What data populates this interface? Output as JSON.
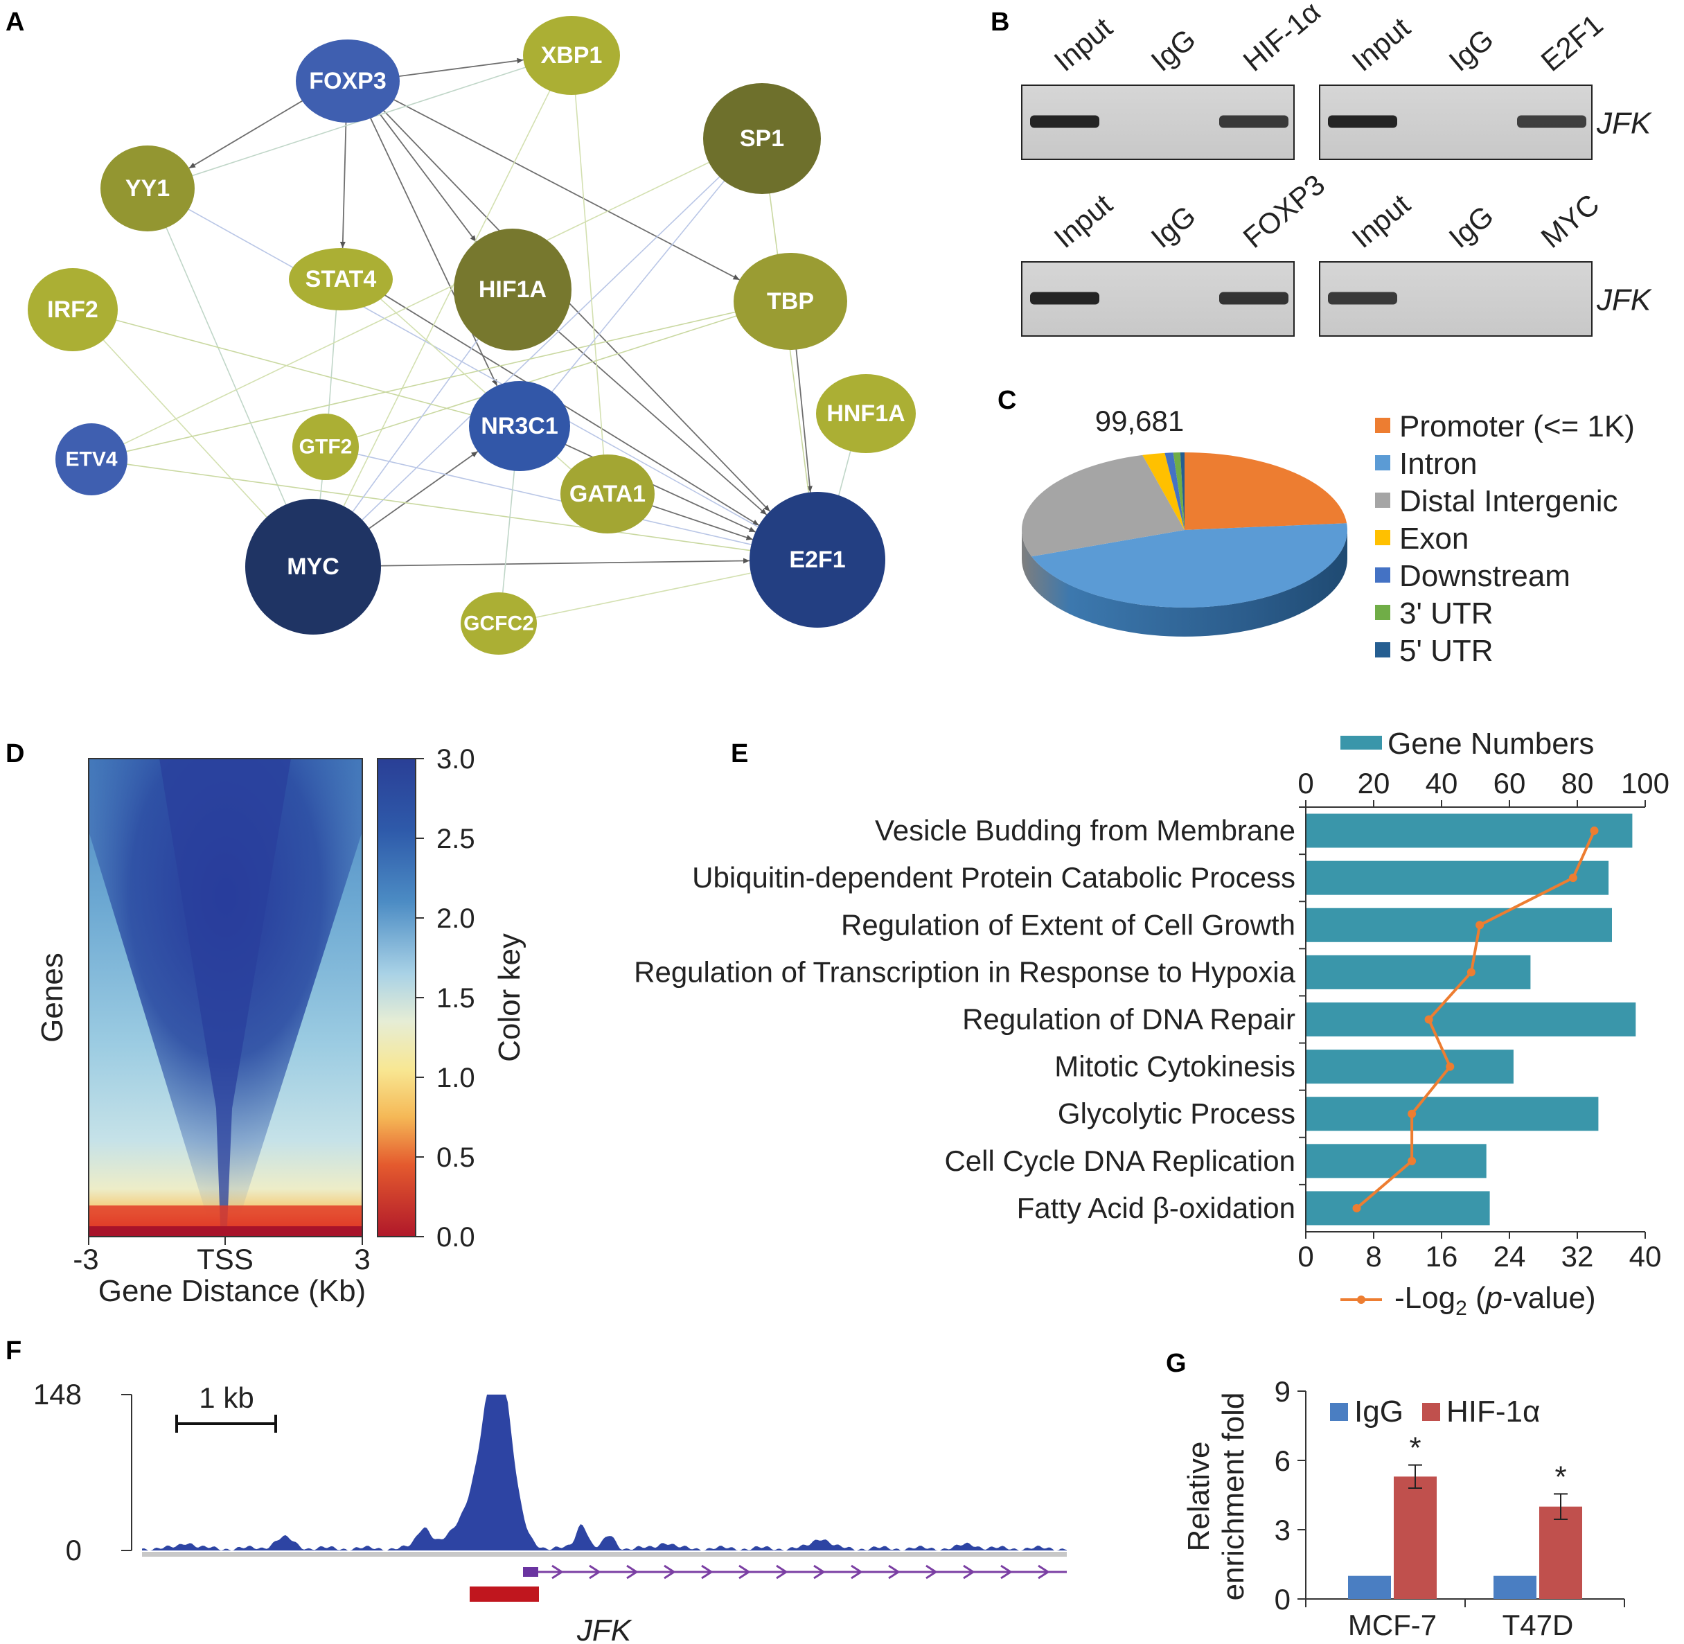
{
  "panels": {
    "A": "A",
    "B": "B",
    "C": "C",
    "D": "D",
    "E": "E",
    "F": "F",
    "G": "G"
  },
  "network": {
    "nodes": [
      {
        "id": "FOXP3",
        "label": "FOXP3",
        "color": "#3F5FB0"
      },
      {
        "id": "XBP1",
        "label": "XBP1",
        "color": "#ABAF34"
      },
      {
        "id": "SP1",
        "label": "SP1",
        "color": "#6E702C"
      },
      {
        "id": "YY1",
        "label": "YY1",
        "color": "#939631"
      },
      {
        "id": "STAT4",
        "label": "STAT4",
        "color": "#ABAF34"
      },
      {
        "id": "HIF1A",
        "label": "HIF1A",
        "color": "#77782E"
      },
      {
        "id": "TBP",
        "label": "TBP",
        "color": "#9A9C33"
      },
      {
        "id": "IRF2",
        "label": "IRF2",
        "color": "#ABAF34"
      },
      {
        "id": "HNF1A",
        "label": "HNF1A",
        "color": "#ABAF34"
      },
      {
        "id": "ETV4",
        "label": "ETV4",
        "color": "#3F5FB0"
      },
      {
        "id": "GTF2",
        "label": "GTF2",
        "color": "#ABAF34"
      },
      {
        "id": "NR3C1",
        "label": "NR3C1",
        "color": "#3257A8"
      },
      {
        "id": "GATA1",
        "label": "GATA1",
        "color": "#A3A633"
      },
      {
        "id": "MYC",
        "label": "MYC",
        "color": "#1F3464"
      },
      {
        "id": "E2F1",
        "label": "E2F1",
        "color": "#233F82"
      },
      {
        "id": "GCFC2",
        "label": "GCFC2",
        "color": "#ABAF34"
      }
    ]
  },
  "chip_gel": {
    "gels": [
      {
        "lanes": [
          "Input",
          "IgG",
          "HIF-1α"
        ],
        "target": "JFK",
        "bands": [
          1,
          0,
          0.8
        ]
      },
      {
        "lanes": [
          "Input",
          "IgG",
          "E2F1"
        ],
        "target": "JFK",
        "bands": [
          1,
          0,
          0.75
        ]
      },
      {
        "lanes": [
          "Input",
          "IgG",
          "FOXP3"
        ],
        "target": "JFK",
        "bands": [
          1,
          0,
          0.85
        ]
      },
      {
        "lanes": [
          "Input",
          "IgG",
          "MYC"
        ],
        "target": "JFK",
        "bands": [
          0.8,
          0,
          0
        ]
      }
    ]
  },
  "pie": {
    "total_label": "99,681",
    "legend": [
      {
        "label": "Promoter (<= 1K)",
        "color": "#ED7D31"
      },
      {
        "label": "Intron",
        "color": "#5B9BD5"
      },
      {
        "label": "Distal Intergenic",
        "color": "#A5A5A5"
      },
      {
        "label": "Exon",
        "color": "#FFC000"
      },
      {
        "label": "Downstream",
        "color": "#4472C4"
      },
      {
        "label": "3' UTR",
        "color": "#70AD47"
      },
      {
        "label": "5' UTR",
        "color": "#255E91"
      }
    ]
  },
  "heatmap": {
    "ylabel": "Genes",
    "xticks": [
      "-3",
      "TSS",
      "3"
    ],
    "xlabel": "Gene Distance (Kb)",
    "colorkey_label": "Color key",
    "colorkey_ticks": [
      "3.0",
      "2.5",
      "2.0",
      "1.5",
      "1.0",
      "0.5",
      "0.0"
    ]
  },
  "chart_data": [
    {
      "type": "bar",
      "title": "",
      "categories": [
        "Vesicle Budding from Membrane",
        "Ubiquitin-dependent Protein Catabolic Process",
        "Regulation of Extent of Cell Growth",
        "Regulation of Transcription in Response to Hypoxia",
        "Regulation of DNA Repair",
        "Mitotic Cytokinesis",
        "Glycolytic Process",
        "Cell Cycle DNA Replication",
        "Fatty Acid β-oxidation"
      ],
      "series": [
        {
          "name": "Gene Numbers",
          "values": [
            96,
            89,
            90,
            66,
            97,
            61,
            86,
            53,
            54
          ],
          "color": "#3A96AA"
        },
        {
          "name": "-Log2 (p-value)",
          "values": [
            34,
            31.5,
            20.5,
            19.5,
            14.5,
            17,
            12.5,
            12.5,
            6
          ],
          "color": "#ED7D31"
        }
      ],
      "top_axis": {
        "ticks": [
          "0",
          "20",
          "40",
          "60",
          "80",
          "100"
        ],
        "range": [
          0,
          100
        ]
      },
      "bottom_axis": {
        "ticks": [
          "0",
          "8",
          "16",
          "24",
          "32",
          "40"
        ],
        "range": [
          0,
          40
        ]
      },
      "legend_top": "Gene Numbers",
      "legend_bottom_prefix": "-Log",
      "legend_bottom_sub": "2",
      "legend_bottom_open": " (",
      "legend_bottom_p": "p",
      "legend_bottom_suffix": "-value)"
    },
    {
      "type": "bar",
      "title": "",
      "categories": [
        "MCF-7",
        "T47D"
      ],
      "series": [
        {
          "name": "IgG",
          "values": [
            1,
            1
          ],
          "errors": [
            0,
            0
          ],
          "color": "#4A7EC2"
        },
        {
          "name": "HIF-1α",
          "values": [
            5.3,
            4.0
          ],
          "errors": [
            0.5,
            0.55
          ],
          "color": "#C0504D"
        }
      ],
      "ylabel_line1": "Relative",
      "ylabel_line2": "enrichment fold",
      "yticks": [
        "0",
        "3",
        "6",
        "9"
      ],
      "ylim": [
        0,
        9
      ],
      "significance": [
        "*",
        "*"
      ]
    }
  ],
  "track": {
    "ymax": "148",
    "ymin": "0",
    "scale_label": "1 kb",
    "gene": "JFK"
  }
}
